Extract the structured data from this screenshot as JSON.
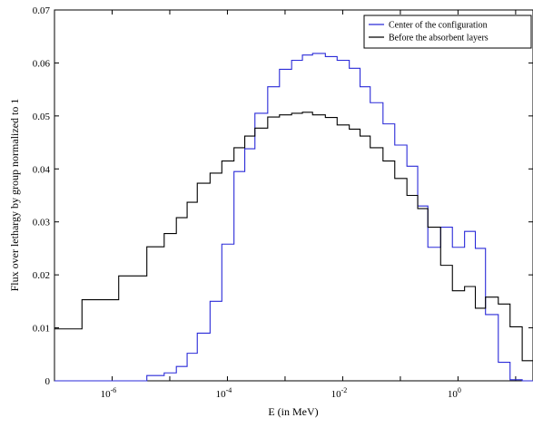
{
  "chart_data": {
    "type": "line",
    "step": "post",
    "title": "",
    "xlabel": "E (in MeV)",
    "ylabel": "Flux over lethargy by group normalized to 1",
    "xscale": "log",
    "xlim": [
      1e-07,
      20
    ],
    "ylim": [
      0,
      0.07
    ],
    "xticks": [
      {
        "value": 1e-06,
        "base": "10",
        "exp": "-6"
      },
      {
        "value": 0.0001,
        "base": "10",
        "exp": "-4"
      },
      {
        "value": 0.01,
        "base": "10",
        "exp": "-2"
      },
      {
        "value": 1,
        "base": "10",
        "exp": "0"
      }
    ],
    "yticks": [
      {
        "value": 0,
        "label": "0"
      },
      {
        "value": 0.01,
        "label": "0.01"
      },
      {
        "value": 0.02,
        "label": "0.02"
      },
      {
        "value": 0.03,
        "label": "0.03"
      },
      {
        "value": 0.04,
        "label": "0.04"
      },
      {
        "value": 0.05,
        "label": "0.05"
      },
      {
        "value": 0.06,
        "label": "0.06"
      },
      {
        "value": 0.07,
        "label": "0.07"
      }
    ],
    "grid": false,
    "legend_position": "top-right",
    "series": [
      {
        "name": "Center of the configuration",
        "color": "#2a2ad8",
        "x": [
          1e-07,
          4e-06,
          8e-06,
          1.3e-05,
          2e-05,
          3e-05,
          5e-05,
          8e-05,
          0.00013,
          0.0002,
          0.0003,
          0.0005,
          0.0008,
          0.0013,
          0.002,
          0.003,
          0.005,
          0.008,
          0.013,
          0.02,
          0.03,
          0.05,
          0.08,
          0.13,
          0.2,
          0.3,
          0.5,
          0.8,
          1.3,
          2,
          3,
          5,
          8,
          13,
          20
        ],
        "y": [
          0,
          0.001,
          0.0015,
          0.0027,
          0.0052,
          0.009,
          0.015,
          0.0258,
          0.0395,
          0.0438,
          0.0505,
          0.0555,
          0.0588,
          0.0605,
          0.0615,
          0.0618,
          0.0612,
          0.0605,
          0.059,
          0.0555,
          0.0525,
          0.0485,
          0.0445,
          0.0405,
          0.033,
          0.0252,
          0.029,
          0.0252,
          0.0282,
          0.025,
          0.0125,
          0.0035,
          0.0002,
          0,
          0
        ]
      },
      {
        "name": "Before the absorbent layers",
        "color": "#000000",
        "x": [
          1e-07,
          3e-07,
          1.3e-06,
          4e-06,
          8e-06,
          1.3e-05,
          2e-05,
          3e-05,
          5e-05,
          8e-05,
          0.00013,
          0.0002,
          0.0003,
          0.0005,
          0.0008,
          0.0013,
          0.002,
          0.003,
          0.005,
          0.008,
          0.013,
          0.02,
          0.03,
          0.05,
          0.08,
          0.13,
          0.2,
          0.3,
          0.5,
          0.8,
          1.3,
          2,
          3,
          5,
          8,
          13,
          20
        ],
        "y": [
          0.0098,
          0.0153,
          0.0198,
          0.0253,
          0.0278,
          0.0308,
          0.0337,
          0.0373,
          0.0392,
          0.0415,
          0.044,
          0.0462,
          0.0477,
          0.0498,
          0.0502,
          0.0505,
          0.0507,
          0.0502,
          0.0497,
          0.0483,
          0.0475,
          0.0462,
          0.044,
          0.0415,
          0.0382,
          0.035,
          0.0325,
          0.029,
          0.0218,
          0.017,
          0.0178,
          0.0137,
          0.0158,
          0.0145,
          0.0102,
          0.0038,
          0.0002
        ]
      }
    ]
  }
}
